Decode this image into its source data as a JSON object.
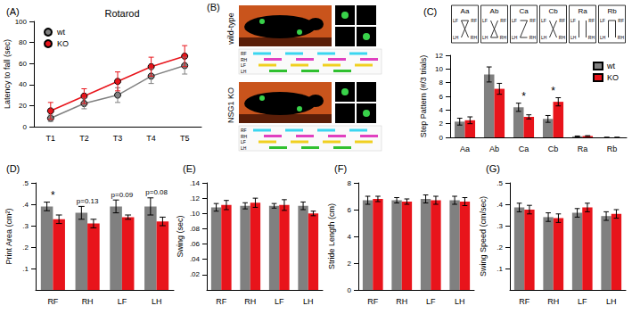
{
  "panel_b": {
    "panel": "(B)",
    "groups": [
      "wild-type",
      "NSG1 KO"
    ],
    "limbs": [
      "RF",
      "RH",
      "LF",
      "LH"
    ]
  },
  "chart_data": [
    {
      "panel": "(A)",
      "type": "line",
      "title": "Rotarod",
      "categories": [
        "T1",
        "T2",
        "T3",
        "T4",
        "T5"
      ],
      "y_label": "Latency to fall (sec)",
      "ylim": [
        0,
        100
      ],
      "yticks": [
        0,
        20,
        40,
        60,
        80,
        100
      ],
      "legend": "upper left",
      "series": [
        {
          "name": "wt",
          "color": "#808080",
          "marker": "circle",
          "values": [
            8,
            22,
            30,
            48,
            58
          ],
          "errors": [
            3,
            5,
            7,
            7,
            8
          ]
        },
        {
          "name": "KO",
          "color": "#e8141b",
          "marker": "circle",
          "values": [
            15,
            29,
            43,
            57,
            67
          ],
          "errors": [
            8,
            7,
            9,
            9,
            10
          ]
        }
      ]
    },
    {
      "panel": "(C)",
      "type": "bar",
      "categories": [
        "Aa",
        "Ab",
        "Ca",
        "Cb",
        "Ra",
        "Rb"
      ],
      "icon_labels": [
        "LF",
        "RF",
        "LH",
        "RH"
      ],
      "y_label": "Step Pattern (#/3 trials)",
      "ylim": [
        0,
        12
      ],
      "yticks": [
        0,
        2,
        4,
        6,
        8,
        10,
        12
      ],
      "legend": "upper right",
      "annotations": [
        {
          "category": "Ca",
          "text": "*"
        },
        {
          "category": "Cb",
          "text": "*"
        }
      ],
      "series": [
        {
          "name": "wt",
          "color": "#808080",
          "values": [
            2.3,
            9.2,
            4.4,
            2.7,
            0.15,
            0
          ],
          "errors": [
            0.5,
            1.1,
            0.6,
            0.5,
            0.05,
            0
          ]
        },
        {
          "name": "KO",
          "color": "#e8141b",
          "values": [
            2.5,
            7.1,
            3.0,
            5.2,
            0.2,
            0
          ],
          "errors": [
            0.5,
            0.8,
            0.3,
            0.6,
            0.05,
            0
          ]
        }
      ]
    },
    {
      "panel": "(D)",
      "type": "bar",
      "categories": [
        "RF",
        "RH",
        "LF",
        "LH"
      ],
      "y_label": "Print Area (cm²)",
      "ylim": [
        0,
        0.5
      ],
      "yticks": [
        {
          "value": 0.1,
          "label": ".1"
        },
        {
          "value": 0.2,
          "label": ".2"
        },
        {
          "value": 0.3,
          "label": ".3"
        },
        {
          "value": 0.4,
          "label": ".4"
        },
        {
          "value": 0.5,
          "label": ".5"
        }
      ],
      "annotations": [
        {
          "category": "RF",
          "text": "*"
        },
        {
          "category": "RH",
          "text": "p=0.13"
        },
        {
          "category": "LF",
          "text": "p=0.09"
        },
        {
          "category": "LH",
          "text": "p=0.08"
        }
      ],
      "series": [
        {
          "name": "wt",
          "color": "#808080",
          "values": [
            0.39,
            0.36,
            0.39,
            0.39
          ],
          "errors": [
            0.02,
            0.03,
            0.03,
            0.04
          ]
        },
        {
          "name": "KO",
          "color": "#e8141b",
          "values": [
            0.33,
            0.31,
            0.34,
            0.32
          ],
          "errors": [
            0.02,
            0.02,
            0.01,
            0.02
          ]
        }
      ]
    },
    {
      "panel": "(E)",
      "type": "bar",
      "categories": [
        "RF",
        "RH",
        "LF",
        "LH"
      ],
      "y_label": "Swing (sec)",
      "ylim": [
        0,
        0.14
      ],
      "yticks": [
        {
          "value": 0.02,
          "label": ".02"
        },
        {
          "value": 0.04,
          "label": ".04"
        },
        {
          "value": 0.06,
          "label": ".06"
        },
        {
          "value": 0.08,
          "label": ".08"
        },
        {
          "value": 0.1,
          "label": ".10"
        },
        {
          "value": 0.12,
          "label": ".12"
        },
        {
          "value": 0.14,
          "label": ".14"
        }
      ],
      "series": [
        {
          "name": "wt",
          "color": "#808080",
          "values": [
            0.108,
            0.11,
            0.11,
            0.11
          ],
          "errors": [
            0.005,
            0.004,
            0.003,
            0.005
          ]
        },
        {
          "name": "KO",
          "color": "#e8141b",
          "values": [
            0.111,
            0.114,
            0.111,
            0.1
          ],
          "errors": [
            0.006,
            0.006,
            0.007,
            0.003
          ]
        }
      ]
    },
    {
      "panel": "(F)",
      "type": "bar",
      "categories": [
        "RF",
        "RH",
        "LF",
        "LH"
      ],
      "y_label": "Stride Length (cm)",
      "ylim": [
        0,
        8
      ],
      "yticks": [
        0,
        2,
        4,
        6,
        8
      ],
      "series": [
        {
          "name": "wt",
          "color": "#808080",
          "values": [
            6.7,
            6.7,
            6.8,
            6.7
          ],
          "errors": [
            0.3,
            0.2,
            0.3,
            0.3
          ]
        },
        {
          "name": "KO",
          "color": "#e8141b",
          "values": [
            6.8,
            6.6,
            6.7,
            6.6
          ],
          "errors": [
            0.2,
            0.2,
            0.3,
            0.3
          ]
        }
      ]
    },
    {
      "panel": "(G)",
      "type": "bar",
      "categories": [
        "RF",
        "RH",
        "LF",
        "LH"
      ],
      "y_label": "Swing Speed (cm/sec)",
      "ylim": [
        0,
        0.5
      ],
      "yticks": [
        {
          "value": 0.1,
          "label": ".1"
        },
        {
          "value": 0.2,
          "label": ".2"
        },
        {
          "value": 0.3,
          "label": ".3"
        },
        {
          "value": 0.4,
          "label": ".4"
        },
        {
          "value": 0.5,
          "label": ".5"
        }
      ],
      "series": [
        {
          "name": "wt",
          "color": "#808080",
          "values": [
            0.385,
            0.34,
            0.36,
            0.345
          ],
          "errors": [
            0.02,
            0.02,
            0.02,
            0.02
          ]
        },
        {
          "name": "KO",
          "color": "#e8141b",
          "values": [
            0.375,
            0.335,
            0.385,
            0.355
          ],
          "errors": [
            0.02,
            0.02,
            0.02,
            0.02
          ]
        }
      ]
    }
  ]
}
